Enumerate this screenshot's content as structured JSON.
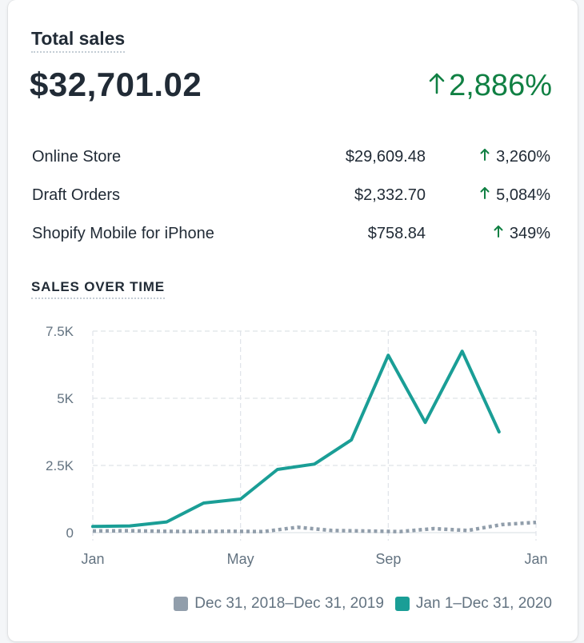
{
  "card": {
    "title": "Total sales",
    "total": "$32,701.02",
    "total_change": "2,886%",
    "breakdown": [
      {
        "label": "Online Store",
        "value": "$29,609.48",
        "change": "3,260%"
      },
      {
        "label": "Draft Orders",
        "value": "$2,332.70",
        "change": "5,084%"
      },
      {
        "label": "Shopify Mobile for iPhone",
        "value": "$758.84",
        "change": "349%"
      }
    ],
    "section_title": "SALES OVER TIME"
  },
  "colors": {
    "positive": "#108043",
    "current_series": "#1a9e96",
    "previous_series": "#919eab",
    "grid": "#dfe3e8",
    "axis_text": "#637381"
  },
  "icons": {
    "up_arrow": "arrow-up-icon"
  },
  "chart_data": {
    "type": "line",
    "x_tick_labels": [
      "Jan",
      "May",
      "Sep",
      "Jan"
    ],
    "y_tick_labels": [
      "0",
      "2.5K",
      "5K",
      "7.5K"
    ],
    "y_ticks": [
      0,
      2500,
      5000,
      7500
    ],
    "ylim": [
      0,
      7500
    ],
    "grid": true,
    "legend_position": "bottom-right",
    "series": [
      {
        "name": "Dec 31, 2018–Dec 31, 2019",
        "style": "dotted",
        "color": "#919eab",
        "values": [
          60,
          70,
          50,
          40,
          50,
          40,
          200,
          80,
          60,
          40,
          150,
          80,
          300,
          380
        ]
      },
      {
        "name": "Jan 1–Dec 31, 2020",
        "style": "solid",
        "color": "#1a9e96",
        "values": [
          230,
          250,
          400,
          1100,
          1250,
          2350,
          2550,
          3450,
          6600,
          4100,
          6750,
          3750
        ]
      }
    ]
  }
}
